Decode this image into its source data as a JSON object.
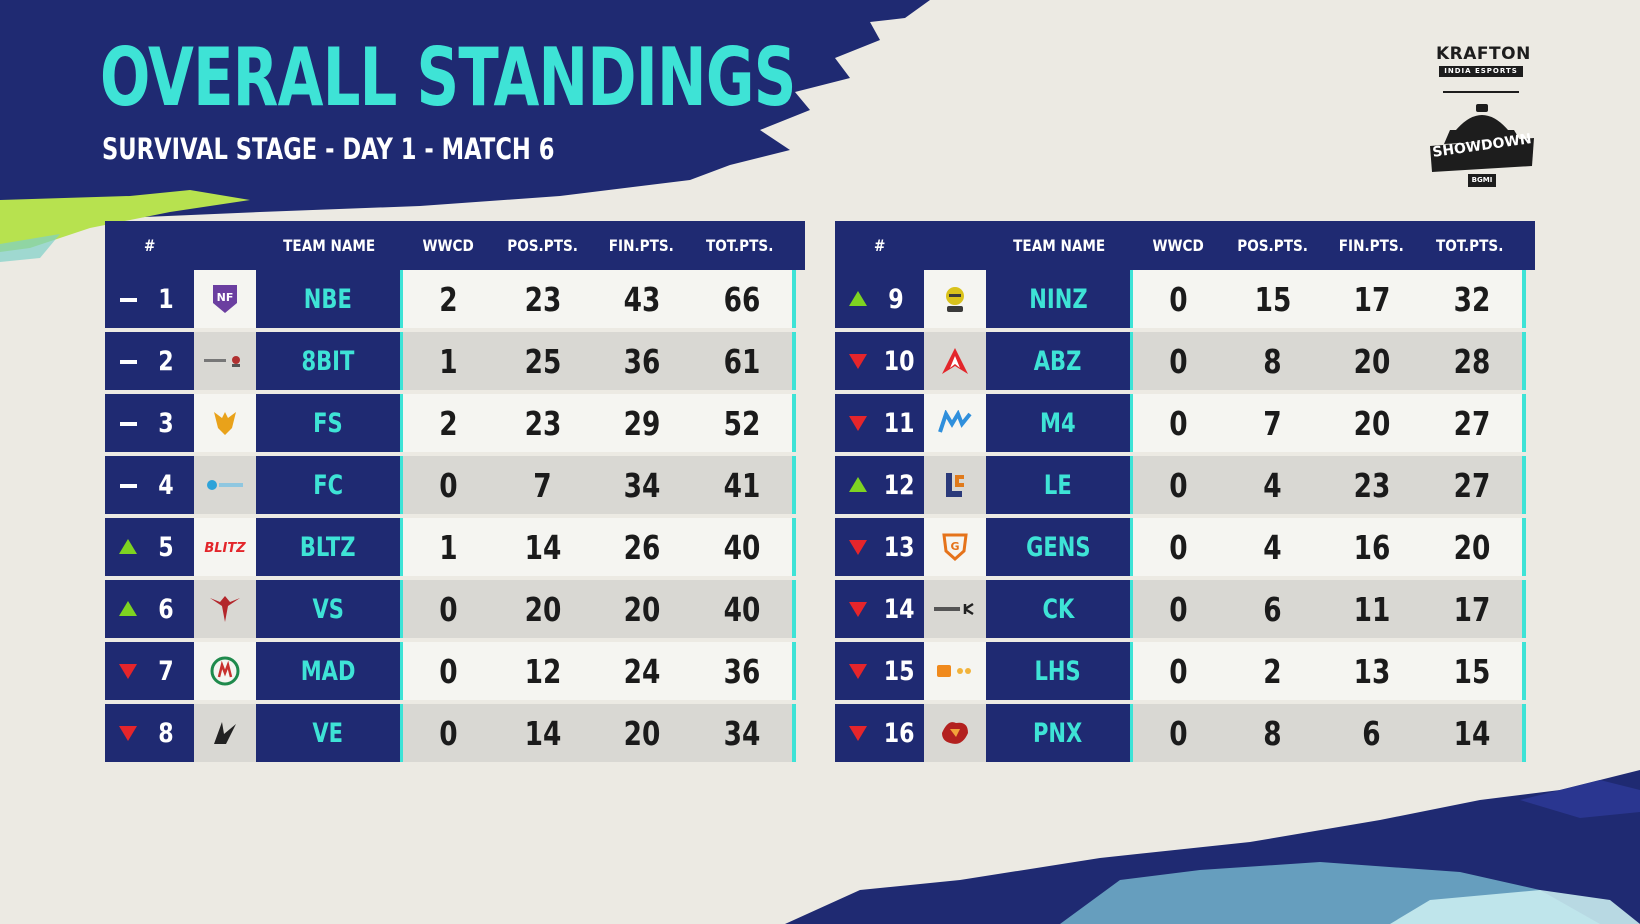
{
  "header": {
    "title": "OVERALL STANDINGS",
    "subtitle": "SURVIVAL STAGE - DAY 1 - MATCH 6"
  },
  "branding": {
    "publisher": "KRAFTON",
    "publisher_sub": "INDIA ESPORTS",
    "event": "SHOWDOWN",
    "event_badge": "BGMI"
  },
  "columns": {
    "rank": "#",
    "team": "TEAM NAME",
    "wwcd": "WWCD",
    "pos": "POS.PTS.",
    "fin": "FIN.PTS.",
    "tot": "TOT.PTS."
  },
  "colors": {
    "navy": "#1f2a72",
    "accent_cyan": "#3ee3d6",
    "up_green": "#7ed321",
    "down_red": "#e5252b"
  },
  "left_table": [
    {
      "rank": "1",
      "trend": "same",
      "logo": "nbe-logo",
      "team": "NBE",
      "wwcd": "2",
      "pos": "23",
      "fin": "43",
      "tot": "66"
    },
    {
      "rank": "2",
      "trend": "same",
      "logo": "8bit-logo",
      "team": "8BIT",
      "wwcd": "1",
      "pos": "25",
      "fin": "36",
      "tot": "61"
    },
    {
      "rank": "3",
      "trend": "same",
      "logo": "fs-logo",
      "team": "FS",
      "wwcd": "2",
      "pos": "23",
      "fin": "29",
      "tot": "52"
    },
    {
      "rank": "4",
      "trend": "same",
      "logo": "fc-logo",
      "team": "FC",
      "wwcd": "0",
      "pos": "7",
      "fin": "34",
      "tot": "41"
    },
    {
      "rank": "5",
      "trend": "up",
      "logo": "bltz-logo",
      "team": "BLTZ",
      "wwcd": "1",
      "pos": "14",
      "fin": "26",
      "tot": "40"
    },
    {
      "rank": "6",
      "trend": "up",
      "logo": "vs-logo",
      "team": "VS",
      "wwcd": "0",
      "pos": "20",
      "fin": "20",
      "tot": "40"
    },
    {
      "rank": "7",
      "trend": "down",
      "logo": "mad-logo",
      "team": "MAD",
      "wwcd": "0",
      "pos": "12",
      "fin": "24",
      "tot": "36"
    },
    {
      "rank": "8",
      "trend": "down",
      "logo": "ve-logo",
      "team": "VE",
      "wwcd": "0",
      "pos": "14",
      "fin": "20",
      "tot": "34"
    }
  ],
  "right_table": [
    {
      "rank": "9",
      "trend": "up",
      "logo": "ninz-logo",
      "team": "NINZ",
      "wwcd": "0",
      "pos": "15",
      "fin": "17",
      "tot": "32"
    },
    {
      "rank": "10",
      "trend": "down",
      "logo": "abz-logo",
      "team": "ABZ",
      "wwcd": "0",
      "pos": "8",
      "fin": "20",
      "tot": "28"
    },
    {
      "rank": "11",
      "trend": "down",
      "logo": "m4-logo",
      "team": "M4",
      "wwcd": "0",
      "pos": "7",
      "fin": "20",
      "tot": "27"
    },
    {
      "rank": "12",
      "trend": "up",
      "logo": "le-logo",
      "team": "LE",
      "wwcd": "0",
      "pos": "4",
      "fin": "23",
      "tot": "27"
    },
    {
      "rank": "13",
      "trend": "down",
      "logo": "gens-logo",
      "team": "GENS",
      "wwcd": "0",
      "pos": "4",
      "fin": "16",
      "tot": "20"
    },
    {
      "rank": "14",
      "trend": "down",
      "logo": "ck-logo",
      "team": "CK",
      "wwcd": "0",
      "pos": "6",
      "fin": "11",
      "tot": "17"
    },
    {
      "rank": "15",
      "trend": "down",
      "logo": "lhs-logo",
      "team": "LHS",
      "wwcd": "0",
      "pos": "2",
      "fin": "13",
      "tot": "15"
    },
    {
      "rank": "16",
      "trend": "down",
      "logo": "pnx-logo",
      "team": "PNX",
      "wwcd": "0",
      "pos": "8",
      "fin": "6",
      "tot": "14"
    }
  ]
}
